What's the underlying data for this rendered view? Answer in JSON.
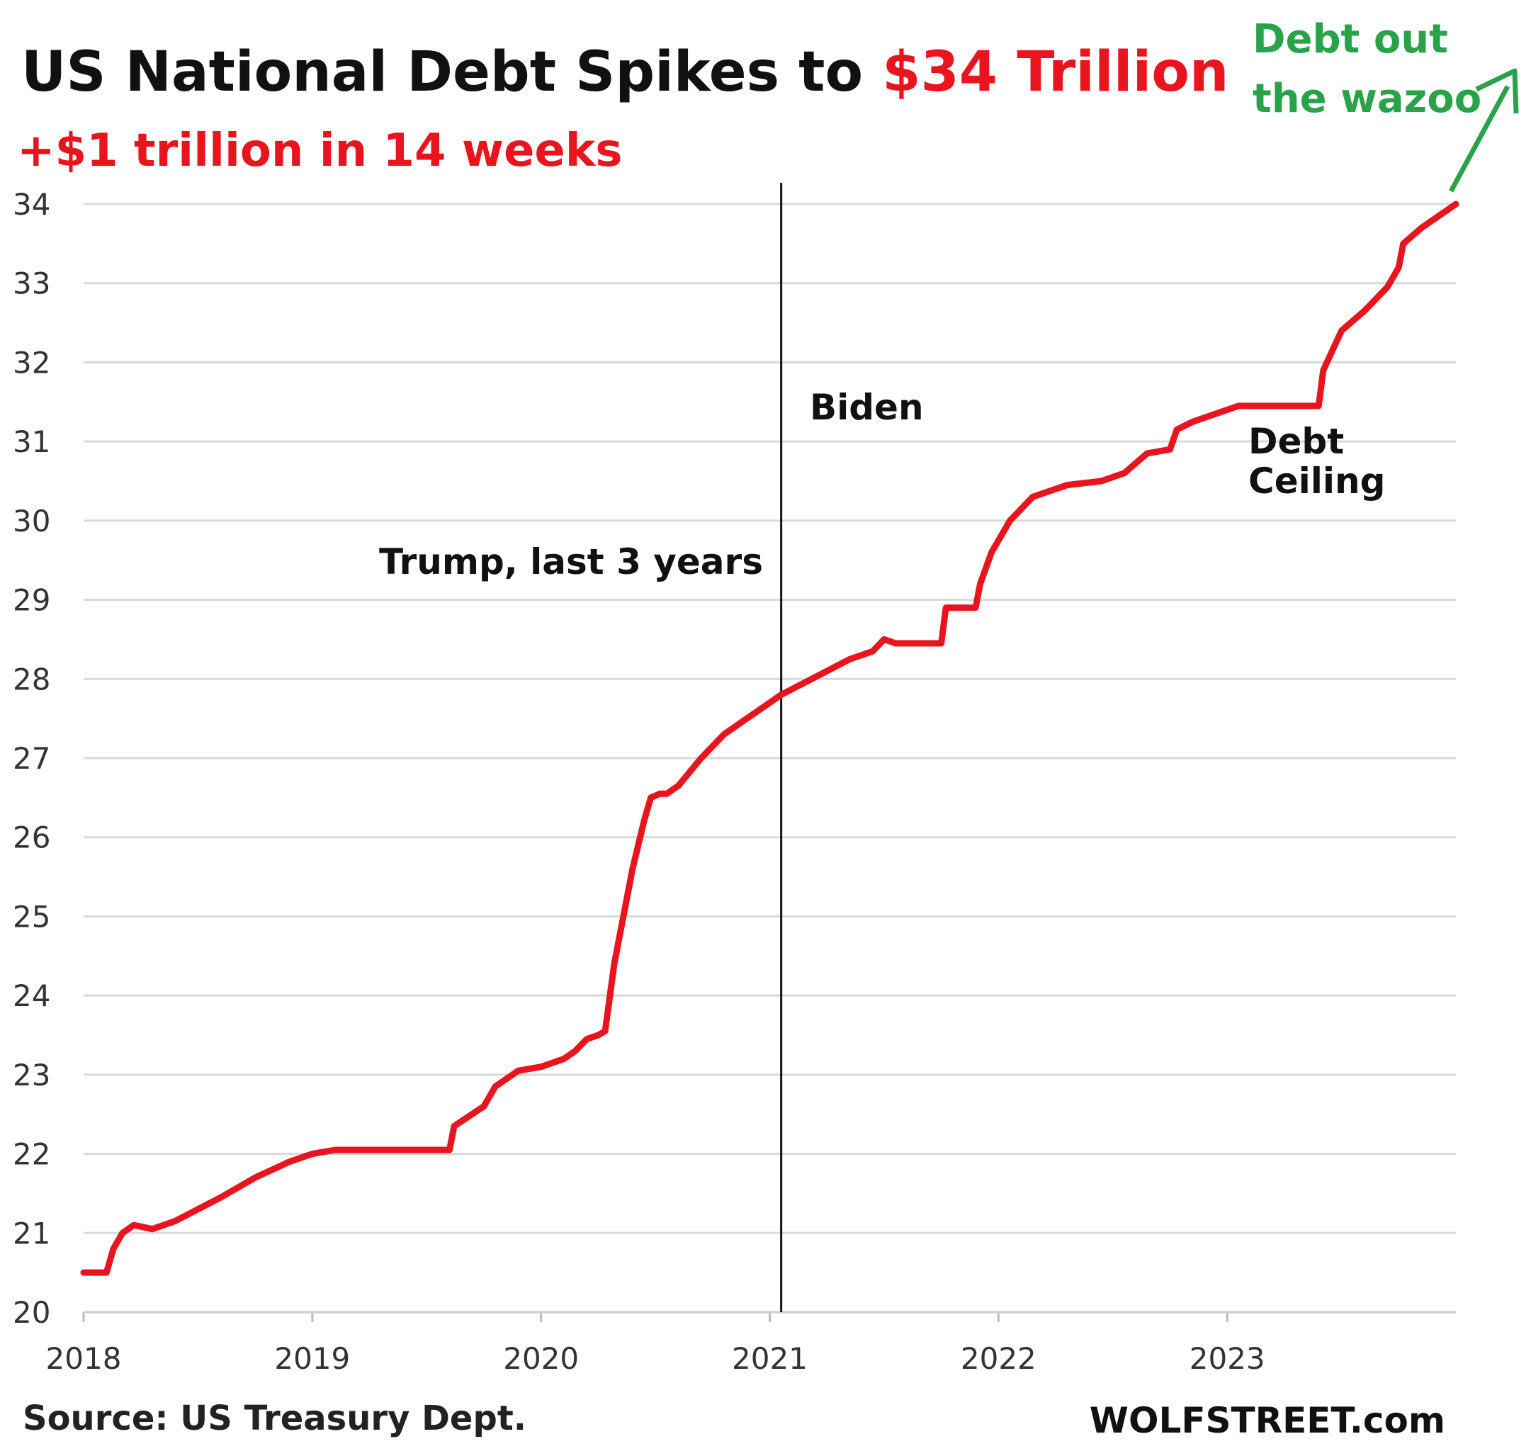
{
  "colors": {
    "series": "#e8141e",
    "title": "#111111",
    "accent": "#e8141e",
    "annotation_green": "#2aa24a",
    "grid": "#d9d9d9",
    "divider": "#111111"
  },
  "header": {
    "title_part1": "US National Debt Spikes to ",
    "title_part2": "$34 Trillion",
    "subtitle": "+$1 trillion  in 14 weeks"
  },
  "annotations": {
    "trump": "Trump, last 3 years",
    "biden": "Biden",
    "ceiling_line1": "Debt",
    "ceiling_line2": "Ceiling",
    "wazoo_line1": "Debt out",
    "wazoo_line2": "the wazoo"
  },
  "footer": {
    "source": "Source: US Treasury Dept.",
    "brand": "WOLFSTREET.com"
  },
  "chart_data": {
    "type": "line",
    "title": "US National Debt Spikes to $34 Trillion",
    "subtitle": "+$1 trillion  in 14 weeks",
    "xlabel": "",
    "ylabel": "",
    "x_ticks": [
      "2018",
      "2019",
      "2020",
      "2021",
      "2022",
      "2023"
    ],
    "y_ticks": [
      "20",
      "21",
      "22",
      "23",
      "24",
      "25",
      "26",
      "27",
      "28",
      "29",
      "30",
      "31",
      "32",
      "33",
      "34"
    ],
    "ylim": [
      20,
      34
    ],
    "xlim": [
      2018.0,
      2024.0
    ],
    "grid": true,
    "vline": {
      "x": 2021.05,
      "label": ""
    },
    "series": [
      {
        "name": "",
        "x": [
          2018.0,
          2018.1,
          2018.13,
          2018.17,
          2018.22,
          2018.3,
          2018.4,
          2018.5,
          2018.6,
          2018.75,
          2018.9,
          2019.0,
          2019.1,
          2019.15,
          2019.4,
          2019.6,
          2019.62,
          2019.75,
          2019.8,
          2019.9,
          2020.0,
          2020.1,
          2020.15,
          2020.2,
          2020.25,
          2020.28,
          2020.32,
          2020.36,
          2020.4,
          2020.45,
          2020.48,
          2020.52,
          2020.55,
          2020.6,
          2020.7,
          2020.75,
          2020.8,
          2020.9,
          2021.0,
          2021.05,
          2021.15,
          2021.25,
          2021.35,
          2021.45,
          2021.5,
          2021.55,
          2021.65,
          2021.75,
          2021.77,
          2021.9,
          2021.92,
          2021.97,
          2022.05,
          2022.15,
          2022.3,
          2022.45,
          2022.55,
          2022.65,
          2022.75,
          2022.78,
          2022.85,
          2022.95,
          2023.05,
          2023.4,
          2023.42,
          2023.5,
          2023.6,
          2023.7,
          2023.75,
          2023.77,
          2023.85,
          2024.0
        ],
        "values": [
          20.5,
          20.5,
          20.8,
          21.0,
          21.1,
          21.05,
          21.15,
          21.3,
          21.45,
          21.7,
          21.9,
          22.0,
          22.05,
          22.05,
          22.05,
          22.05,
          22.35,
          22.6,
          22.85,
          23.05,
          23.1,
          23.2,
          23.3,
          23.45,
          23.5,
          23.55,
          24.4,
          25.0,
          25.6,
          26.2,
          26.5,
          26.55,
          26.55,
          26.65,
          27.0,
          27.15,
          27.3,
          27.5,
          27.7,
          27.8,
          27.95,
          28.1,
          28.25,
          28.35,
          28.5,
          28.45,
          28.45,
          28.45,
          28.9,
          28.9,
          29.2,
          29.6,
          30.0,
          30.3,
          30.45,
          30.5,
          30.6,
          30.85,
          30.9,
          31.15,
          31.25,
          31.35,
          31.45,
          31.45,
          31.9,
          32.4,
          32.65,
          32.95,
          33.2,
          33.5,
          33.7,
          34.0
        ]
      }
    ]
  }
}
